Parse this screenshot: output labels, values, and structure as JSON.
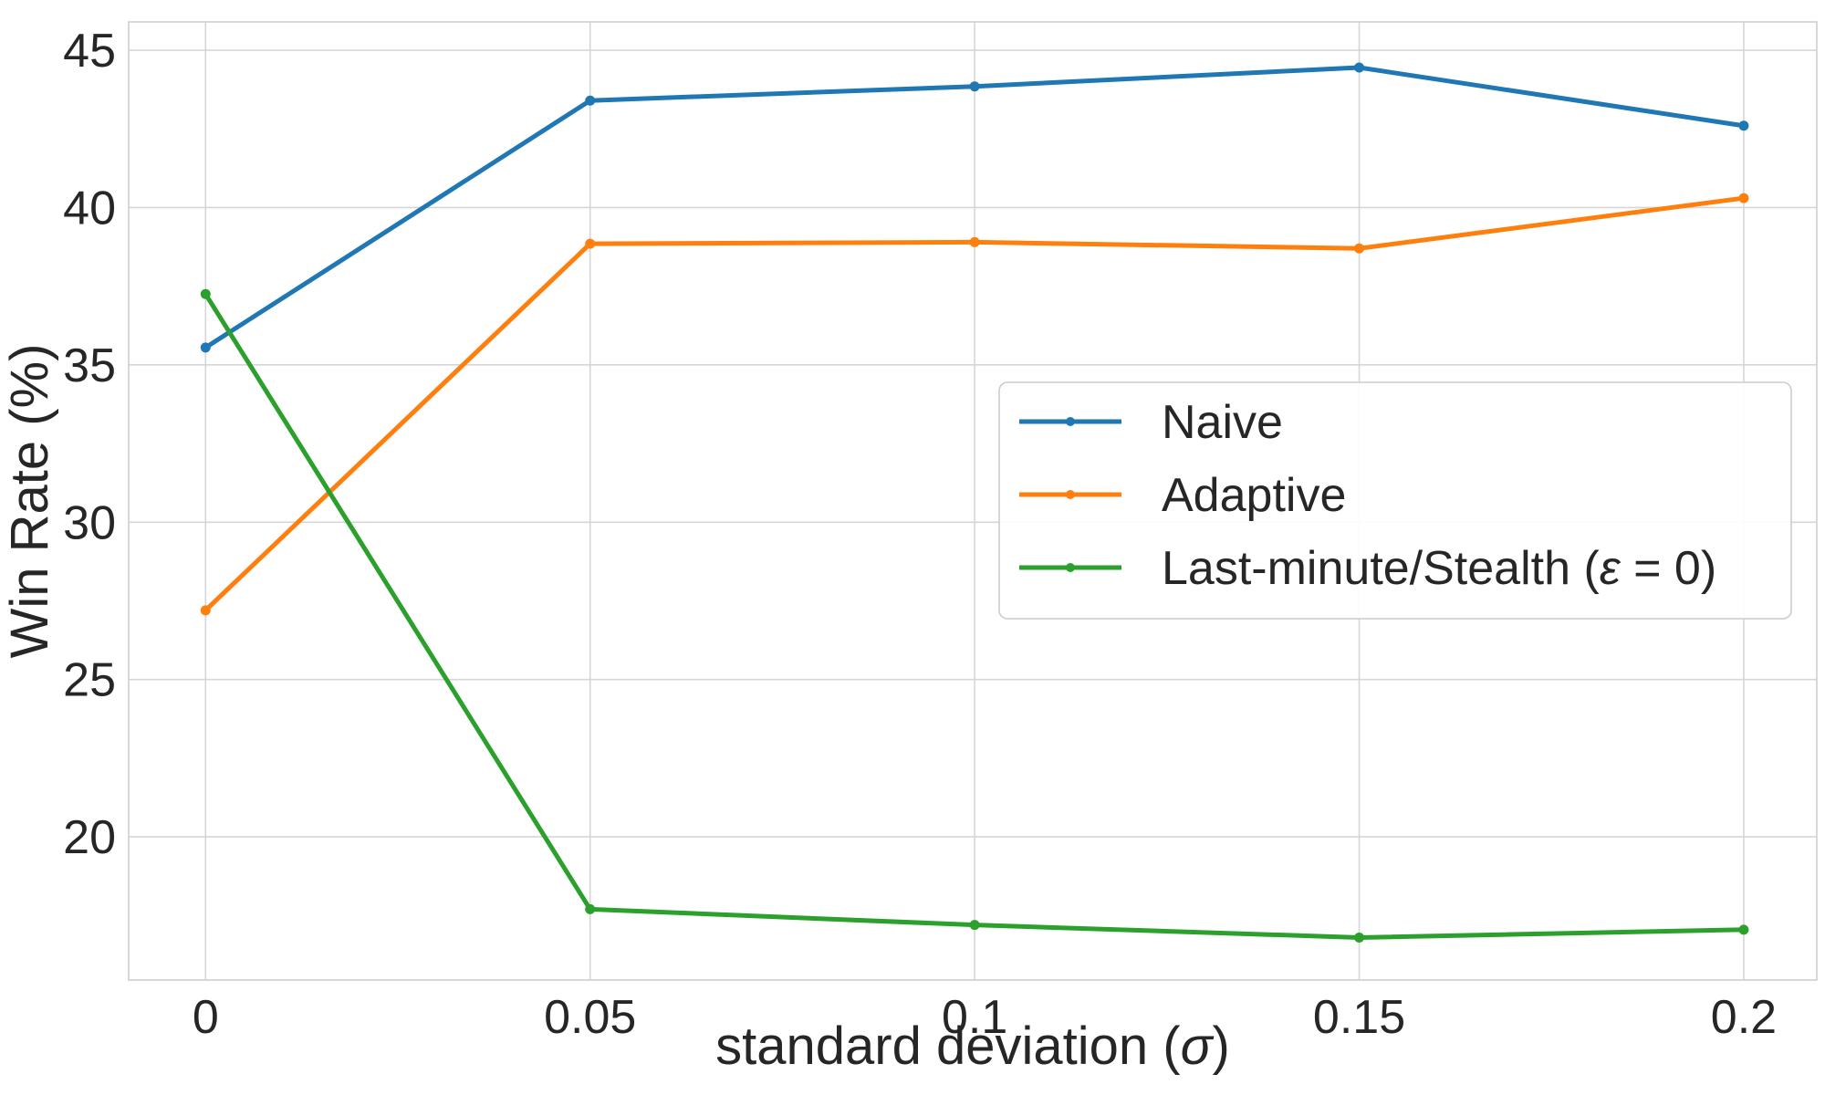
{
  "chart_data": {
    "type": "line",
    "x_tick_labels": [
      "0",
      "0.05",
      "0.1",
      "0.15",
      "0.2"
    ],
    "x": [
      0,
      0.05,
      0.1,
      0.15,
      0.2
    ],
    "y_ticks": [
      20,
      25,
      30,
      35,
      40,
      45
    ],
    "y_tick_labels": [
      "20",
      "25",
      "30",
      "35",
      "40",
      "45"
    ],
    "xlim": [
      -0.01,
      0.2095
    ],
    "ylim": [
      15.45,
      45.9
    ],
    "grid": true,
    "legend_position": "center-right",
    "xlabel_prefix": "standard deviation (",
    "xlabel_symbol": "σ",
    "xlabel_suffix": ")",
    "ylabel": "Win Rate (%)",
    "series": [
      {
        "name": "Naive",
        "color": "#1f77b4",
        "values": [
          35.55,
          43.4,
          43.85,
          44.45,
          42.6
        ]
      },
      {
        "name": "Adaptive",
        "color": "#ff7f0e",
        "values": [
          27.2,
          38.85,
          38.9,
          38.7,
          40.3
        ]
      },
      {
        "name_prefix": "Last-minute/Stealth (",
        "name_symbol": "ε",
        "name_suffix": " = 0)",
        "color": "#2ca02c",
        "values": [
          37.25,
          17.7,
          17.2,
          16.8,
          17.05
        ]
      }
    ]
  }
}
